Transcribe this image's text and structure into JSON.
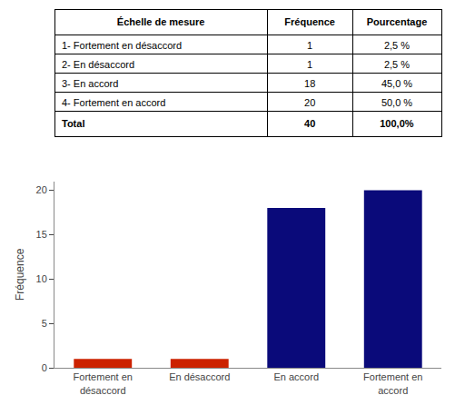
{
  "chart_data": [
    {
      "type": "table",
      "columns": [
        "Échelle de mesure",
        "Fréquence",
        "Pourcentage"
      ],
      "rows": [
        [
          "1- Fortement en désaccord",
          "1",
          "2,5 %"
        ],
        [
          "2- En désaccord",
          "1",
          "2,5 %"
        ],
        [
          "3- En accord",
          "18",
          "45,0 %"
        ],
        [
          "4- Fortement en accord",
          "20",
          "50,0 %"
        ],
        [
          "Total",
          "40",
          "100,0%"
        ]
      ]
    },
    {
      "type": "bar",
      "categories": [
        "Fortement en\ndésaccord",
        "En désaccord",
        "En accord",
        "Fortement en\naccord"
      ],
      "values": [
        1,
        1,
        18,
        20
      ],
      "colors": [
        "#CC2200",
        "#CC2200",
        "#0A0A7A",
        "#0A0A7A"
      ],
      "ylabel": "Fréquence",
      "ylim": [
        0,
        21
      ],
      "yticks": [
        0,
        5,
        10,
        15,
        20
      ],
      "grid": false
    }
  ]
}
